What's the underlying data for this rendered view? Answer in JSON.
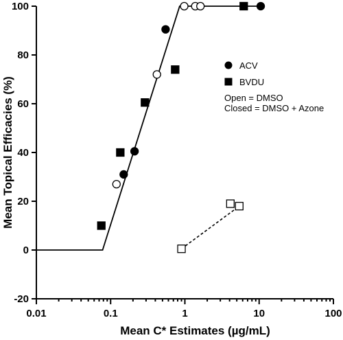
{
  "chart_data": {
    "type": "scatter",
    "xscale": "log",
    "xlim": [
      0.01,
      100
    ],
    "ylim": [
      -20,
      100
    ],
    "xlabel": "Mean C* Estimates (µg/mL)",
    "ylabel": "Mean Topical Efficacies (%)",
    "x_ticks": [
      0.01,
      0.1,
      1,
      10,
      100
    ],
    "x_tick_labels": [
      "0.01",
      "0.1",
      "1",
      "10",
      "100"
    ],
    "y_ticks": [
      -20,
      0,
      20,
      40,
      60,
      80,
      100
    ],
    "y_tick_labels": [
      "-20",
      "0",
      "20",
      "40",
      "60",
      "80",
      "100"
    ],
    "grid": false,
    "legend": {
      "placement": "right",
      "entries": [
        {
          "label": "ACV",
          "marker": "circle"
        },
        {
          "label": "BVDU",
          "marker": "square"
        }
      ],
      "notes": [
        "Open = DMSO",
        "Closed = DMSO + Azone"
      ]
    },
    "series": [
      {
        "name": "ACV",
        "marker": "circle",
        "fill": "closed",
        "x": [
          0.15,
          0.21,
          0.55,
          10.5
        ],
        "y": [
          31,
          40.5,
          90.5,
          100
        ]
      },
      {
        "name": "ACV",
        "marker": "circle",
        "fill": "open",
        "x": [
          0.12,
          0.42,
          0.98,
          1.38,
          1.62
        ],
        "y": [
          27,
          72,
          100,
          100,
          100
        ]
      },
      {
        "name": "BVDU",
        "marker": "square",
        "fill": "closed",
        "x": [
          0.075,
          0.135,
          0.29,
          0.74,
          6.2
        ],
        "y": [
          10,
          40,
          60.5,
          74,
          100
        ]
      },
      {
        "name": "BVDU",
        "marker": "square",
        "fill": "open",
        "x": [
          0.9,
          4.1,
          5.4
        ],
        "y": [
          0.5,
          19,
          18
        ],
        "connector": {
          "style": "dashed",
          "points": [
            [
              0.9,
              0.5
            ],
            [
              5.4,
              18
            ]
          ]
        }
      }
    ],
    "fit_line": {
      "style": "solid",
      "points": [
        [
          0.01,
          0
        ],
        [
          0.078,
          0
        ],
        [
          0.85,
          100
        ],
        [
          10,
          100
        ]
      ]
    }
  }
}
